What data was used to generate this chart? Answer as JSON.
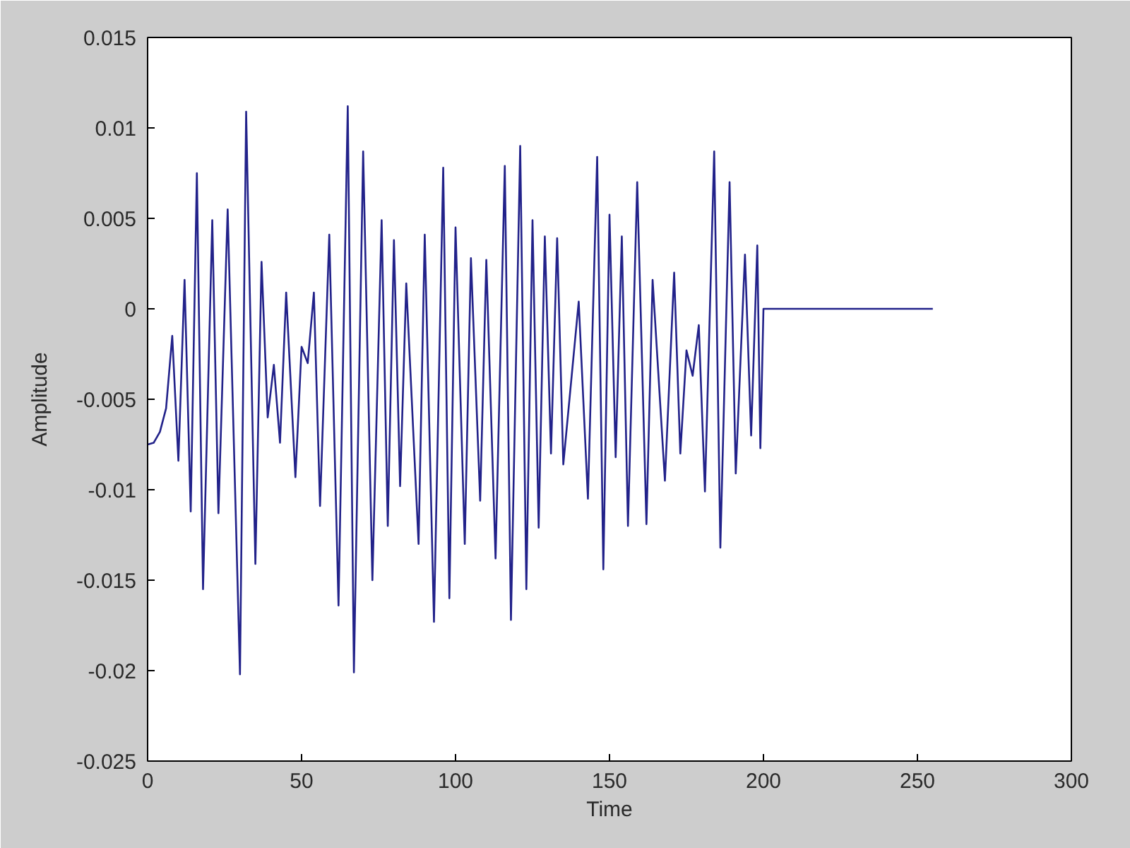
{
  "chart_data": {
    "type": "line",
    "xlabel": "Time",
    "ylabel": "Amplitude",
    "color": "#22228a",
    "line_style": "solid",
    "xlim": [
      0,
      300
    ],
    "ylim": [
      -0.025,
      0.015
    ],
    "xticks": [
      0,
      50,
      100,
      150,
      200,
      250,
      300
    ],
    "yticks": [
      -0.025,
      -0.02,
      -0.015,
      -0.01,
      -0.005,
      0,
      0.005,
      0.01,
      0.015
    ],
    "x": [
      0,
      2,
      4,
      6,
      8,
      10,
      12,
      14,
      16,
      18,
      21,
      23,
      26,
      30,
      32,
      35,
      37,
      39,
      41,
      43,
      45,
      48,
      50,
      52,
      54,
      56,
      59,
      62,
      65,
      67,
      70,
      73,
      76,
      78,
      80,
      82,
      84,
      88,
      90,
      93,
      96,
      98,
      100,
      103,
      105,
      108,
      110,
      113,
      116,
      118,
      121,
      123,
      125,
      127,
      129,
      131,
      133,
      135,
      140,
      143,
      146,
      148,
      150,
      152,
      154,
      156,
      159,
      162,
      164,
      168,
      171,
      173,
      175,
      177,
      179,
      181,
      184,
      186,
      189,
      191,
      194,
      196,
      198,
      199,
      200,
      255
    ],
    "values": [
      -0.0075,
      -0.0074,
      -0.0068,
      -0.0055,
      -0.0015,
      -0.0084,
      0.0016,
      -0.0112,
      0.0075,
      -0.0155,
      0.0049,
      -0.0113,
      0.0055,
      -0.0202,
      0.0109,
      -0.0141,
      0.0026,
      -0.006,
      -0.0031,
      -0.0074,
      0.0009,
      -0.0093,
      -0.0021,
      -0.003,
      0.0009,
      -0.0109,
      0.0041,
      -0.0164,
      0.0112,
      -0.0201,
      0.0087,
      -0.015,
      0.0049,
      -0.012,
      0.0038,
      -0.0098,
      0.0014,
      -0.013,
      0.0041,
      -0.0173,
      0.0078,
      -0.016,
      0.0045,
      -0.013,
      0.0028,
      -0.0106,
      0.0027,
      -0.0138,
      0.0079,
      -0.0172,
      0.009,
      -0.0155,
      0.0049,
      -0.0121,
      0.004,
      -0.008,
      0.0039,
      -0.0086,
      0.0004,
      -0.0105,
      0.0084,
      -0.0144,
      0.0052,
      -0.0082,
      0.004,
      -0.012,
      0.007,
      -0.0119,
      0.0016,
      -0.0095,
      0.002,
      -0.008,
      -0.0023,
      -0.0037,
      -0.0009,
      -0.0101,
      0.0087,
      -0.0132,
      0.007,
      -0.0091,
      0.003,
      -0.007,
      0.0035,
      -0.0077,
      0,
      0
    ]
  }
}
